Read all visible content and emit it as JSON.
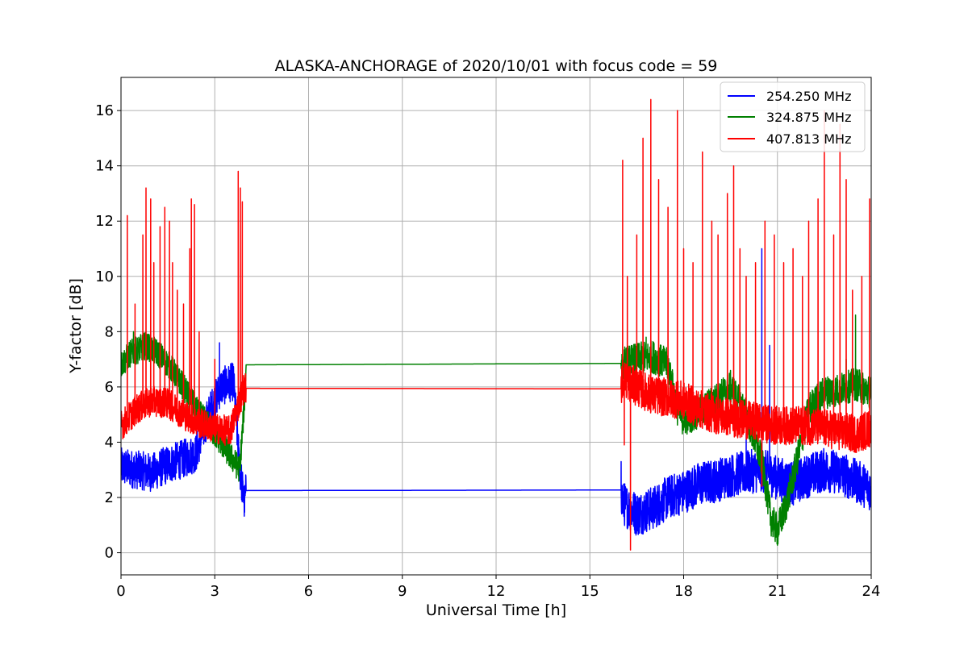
{
  "chart_data": {
    "type": "line",
    "title": "ALASKA-ANCHORAGE of 2020/10/01 with focus code = 59",
    "xlabel": "Universal Time [h]",
    "ylabel": "Y-factor [dB]",
    "xlim": [
      0,
      24
    ],
    "ylim": [
      -0.8,
      17.2
    ],
    "xticks": [
      0,
      3,
      6,
      9,
      12,
      15,
      18,
      21,
      24
    ],
    "yticks": [
      0,
      2,
      4,
      6,
      8,
      10,
      12,
      14,
      16
    ],
    "grid": true,
    "legend_position": "top-right",
    "series": [
      {
        "name": "254.250 MHz",
        "color": "#0000ff",
        "baseline": [
          [
            0.0,
            3.1
          ],
          [
            0.5,
            3.0
          ],
          [
            1.0,
            2.9
          ],
          [
            1.5,
            3.2
          ],
          [
            2.0,
            3.4
          ],
          [
            2.4,
            3.6
          ],
          [
            2.8,
            5.0
          ],
          [
            3.2,
            6.0
          ],
          [
            3.6,
            6.2
          ],
          [
            3.8,
            3.0
          ],
          [
            3.95,
            1.8
          ],
          [
            4.0,
            2.25
          ],
          [
            16.0,
            2.27
          ],
          [
            16.05,
            1.8
          ],
          [
            16.5,
            1.4
          ],
          [
            17.0,
            1.6
          ],
          [
            17.5,
            2.0
          ],
          [
            18.0,
            2.2
          ],
          [
            18.5,
            2.5
          ],
          [
            19.0,
            2.6
          ],
          [
            19.5,
            2.8
          ],
          [
            20.0,
            2.9
          ],
          [
            20.5,
            3.0
          ],
          [
            21.0,
            2.7
          ],
          [
            21.5,
            2.5
          ],
          [
            22.0,
            2.8
          ],
          [
            22.5,
            3.0
          ],
          [
            23.0,
            2.9
          ],
          [
            23.5,
            2.6
          ],
          [
            24.0,
            2.3
          ]
        ],
        "noise": [
          [
            0,
            4,
            0.7
          ],
          [
            4,
            16,
            0.0
          ],
          [
            16,
            24,
            0.8
          ]
        ],
        "spikes": [
          [
            3.15,
            7.6
          ],
          [
            20.5,
            11.0
          ],
          [
            20.75,
            7.5
          ],
          [
            20.0,
            4.3
          ],
          [
            16.0,
            3.3
          ]
        ]
      },
      {
        "name": "324.875 MHz",
        "color": "#008000",
        "baseline": [
          [
            0.0,
            6.8
          ],
          [
            0.3,
            7.2
          ],
          [
            0.8,
            7.5
          ],
          [
            1.2,
            7.2
          ],
          [
            1.6,
            6.7
          ],
          [
            2.0,
            6.0
          ],
          [
            2.4,
            5.2
          ],
          [
            2.8,
            4.6
          ],
          [
            3.2,
            4.0
          ],
          [
            3.5,
            3.5
          ],
          [
            3.8,
            3.0
          ],
          [
            3.95,
            5.5
          ],
          [
            4.0,
            6.8
          ],
          [
            16.0,
            6.85
          ],
          [
            16.5,
            7.0
          ],
          [
            17.0,
            7.1
          ],
          [
            17.5,
            6.8
          ],
          [
            17.8,
            5.2
          ],
          [
            18.0,
            4.8
          ],
          [
            18.5,
            5.1
          ],
          [
            19.0,
            5.5
          ],
          [
            19.5,
            6.0
          ],
          [
            20.0,
            5.0
          ],
          [
            20.5,
            3.3
          ],
          [
            20.8,
            1.2
          ],
          [
            21.0,
            0.8
          ],
          [
            21.3,
            1.8
          ],
          [
            21.6,
            3.2
          ],
          [
            22.0,
            5.2
          ],
          [
            22.5,
            5.8
          ],
          [
            23.0,
            5.9
          ],
          [
            23.5,
            6.1
          ],
          [
            24.0,
            5.8
          ]
        ],
        "noise": [
          [
            0,
            4,
            0.5
          ],
          [
            4,
            16,
            0.0
          ],
          [
            16,
            24,
            0.6
          ]
        ],
        "spikes": [
          [
            23.5,
            8.6
          ],
          [
            0.4,
            8.0
          ],
          [
            16.8,
            7.8
          ],
          [
            23.2,
            7.0
          ]
        ]
      },
      {
        "name": "407.813 MHz",
        "color": "#ff0000",
        "baseline": [
          [
            0.0,
            4.6
          ],
          [
            0.5,
            5.2
          ],
          [
            1.0,
            5.5
          ],
          [
            1.5,
            5.4
          ],
          [
            2.0,
            5.0
          ],
          [
            2.5,
            4.7
          ],
          [
            3.0,
            4.5
          ],
          [
            3.5,
            4.4
          ],
          [
            3.8,
            5.5
          ],
          [
            3.95,
            6.0
          ],
          [
            4.0,
            5.95
          ],
          [
            16.0,
            5.93
          ],
          [
            16.05,
            6.3
          ],
          [
            16.5,
            6.0
          ],
          [
            17.0,
            5.7
          ],
          [
            17.5,
            5.6
          ],
          [
            18.0,
            5.5
          ],
          [
            18.5,
            5.2
          ],
          [
            19.0,
            5.0
          ],
          [
            19.5,
            4.9
          ],
          [
            20.0,
            4.8
          ],
          [
            20.5,
            4.7
          ],
          [
            21.0,
            4.6
          ],
          [
            21.5,
            4.6
          ],
          [
            22.0,
            4.6
          ],
          [
            22.5,
            4.5
          ],
          [
            23.0,
            4.4
          ],
          [
            23.5,
            4.3
          ],
          [
            24.0,
            4.5
          ]
        ],
        "noise": [
          [
            0,
            4,
            0.55
          ],
          [
            4,
            16,
            0.0
          ],
          [
            16,
            24,
            0.7
          ]
        ],
        "spikes": [
          [
            0.2,
            12.2
          ],
          [
            0.45,
            9.0
          ],
          [
            0.7,
            11.5
          ],
          [
            0.8,
            13.2
          ],
          [
            0.95,
            12.8
          ],
          [
            1.05,
            10.5
          ],
          [
            1.25,
            11.8
          ],
          [
            1.4,
            12.5
          ],
          [
            1.55,
            12.0
          ],
          [
            1.65,
            10.5
          ],
          [
            1.8,
            9.5
          ],
          [
            2.0,
            9.0
          ],
          [
            2.2,
            11.0
          ],
          [
            2.25,
            12.8
          ],
          [
            2.35,
            12.6
          ],
          [
            2.5,
            8.0
          ],
          [
            3.0,
            7.0
          ],
          [
            3.75,
            13.8
          ],
          [
            3.82,
            13.2
          ],
          [
            3.88,
            12.7
          ],
          [
            16.05,
            14.2
          ],
          [
            16.2,
            10.0
          ],
          [
            16.5,
            11.5
          ],
          [
            16.7,
            15.0
          ],
          [
            16.95,
            16.4
          ],
          [
            17.2,
            13.5
          ],
          [
            17.5,
            12.5
          ],
          [
            17.8,
            16.0
          ],
          [
            18.0,
            11.0
          ],
          [
            18.3,
            10.5
          ],
          [
            18.6,
            14.5
          ],
          [
            18.9,
            12.0
          ],
          [
            19.1,
            11.5
          ],
          [
            19.4,
            13.0
          ],
          [
            19.6,
            14.0
          ],
          [
            19.8,
            11.0
          ],
          [
            20.0,
            10.0
          ],
          [
            20.3,
            10.5
          ],
          [
            20.6,
            12.0
          ],
          [
            20.9,
            11.5
          ],
          [
            21.2,
            10.5
          ],
          [
            21.5,
            11.0
          ],
          [
            21.8,
            10.0
          ],
          [
            22.0,
            12.0
          ],
          [
            22.3,
            12.8
          ],
          [
            22.5,
            16.0
          ],
          [
            22.8,
            11.5
          ],
          [
            23.0,
            15.5
          ],
          [
            23.2,
            13.5
          ],
          [
            23.4,
            9.5
          ],
          [
            23.7,
            10.0
          ],
          [
            23.95,
            12.8
          ],
          [
            16.1,
            3.9
          ],
          [
            16.3,
            0.1
          ],
          [
            20.5,
            2.4
          ]
        ]
      }
    ]
  }
}
